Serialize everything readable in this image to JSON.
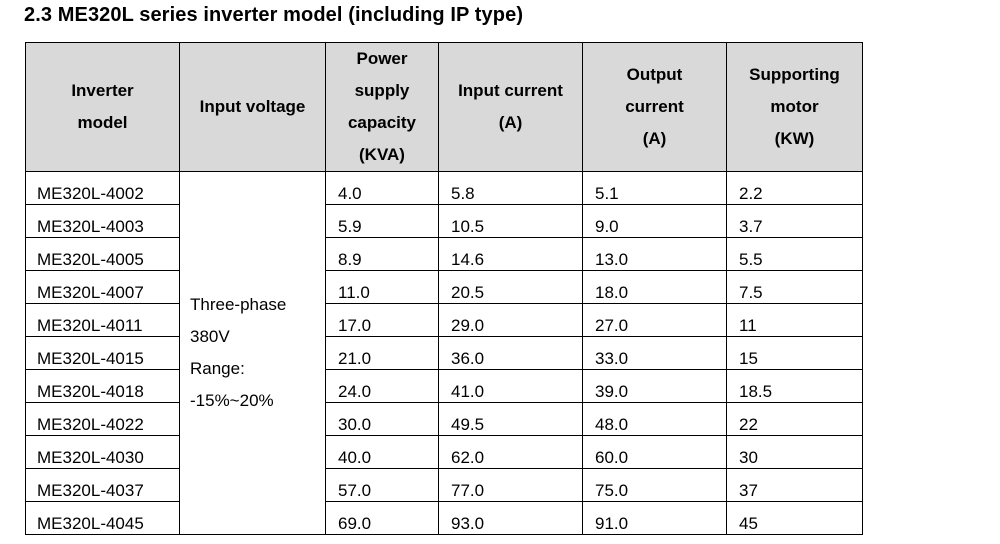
{
  "title": "2.3 ME320L series inverter model (including IP type)",
  "table": {
    "headers": [
      [
        "Inverter",
        "model"
      ],
      [
        "Input voltage"
      ],
      [
        "Power",
        "supply",
        "capacity",
        "(KVA)"
      ],
      [
        "Input current",
        "(A)"
      ],
      [
        "Output",
        "current",
        "(A)"
      ],
      [
        "Supporting",
        "motor",
        "(KW)"
      ]
    ],
    "input_voltage": [
      "Three-phase",
      "380V",
      "Range:",
      "-15%~20%"
    ],
    "rows": [
      [
        "ME320L-4002",
        "4.0",
        "5.8",
        "5.1",
        "2.2"
      ],
      [
        "ME320L-4003",
        "5.9",
        "10.5",
        "9.0",
        "3.7"
      ],
      [
        "ME320L-4005",
        "8.9",
        "14.6",
        "13.0",
        "5.5"
      ],
      [
        "ME320L-4007",
        "11.0",
        "20.5",
        "18.0",
        "7.5"
      ],
      [
        "ME320L-4011",
        "17.0",
        "29.0",
        "27.0",
        "11"
      ],
      [
        "ME320L-4015",
        "21.0",
        "36.0",
        "33.0",
        "15"
      ],
      [
        "ME320L-4018",
        "24.0",
        "41.0",
        "39.0",
        "18.5"
      ],
      [
        "ME320L-4022",
        "30.0",
        "49.5",
        "48.0",
        "22"
      ],
      [
        "ME320L-4030",
        "40.0",
        "62.0",
        "60.0",
        "30"
      ],
      [
        "ME320L-4037",
        "57.0",
        "77.0",
        "75.0",
        "37"
      ],
      [
        "ME320L-4045",
        "69.0",
        "93.0",
        "91.0",
        "45"
      ]
    ]
  }
}
